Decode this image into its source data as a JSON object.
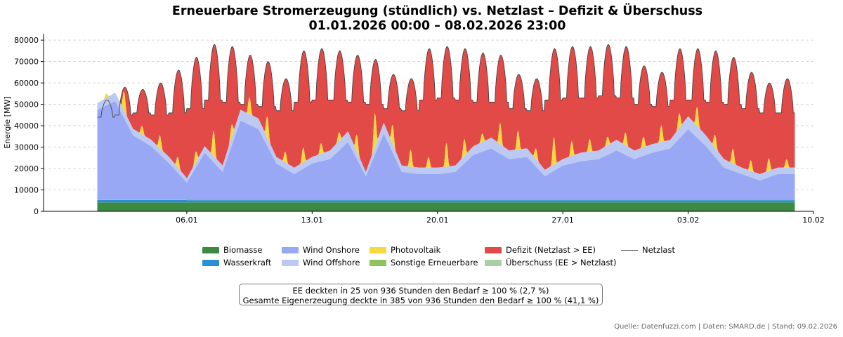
{
  "title_line1": "Erneuerbare Stromerzeugung (stündlich) vs. Netzlast – Defizit & Überschuss",
  "title_line2": "01.01.2026 00:00 – 08.02.2026 23:00",
  "note_line1": "EE deckten in 25 von 936 Stunden den Bedarf ≥ 100 % (2,7 %)",
  "note_line2": "Gesamte Eigenerzeugung deckte in 385 von 936 Stunden den Bedarf ≥ 100 % (41,1 %)",
  "source": "Quelle: Datenfuzzi.com | Daten: SMARD.de | Stand: 09.02.2026",
  "legend": {
    "biomasse": "Biomasse",
    "wasserkraft": "Wasserkraft",
    "wind_onshore": "Wind Onshore",
    "wind_offshore": "Wind Offshore",
    "pv": "Photovoltaik",
    "sonstige": "Sonstige Erneuerbare",
    "defizit": "Defizit (Netzlast > EE)",
    "ueberschuss": "Überschuss (EE > Netzlast)",
    "netzlast": "Netzlast"
  },
  "colors": {
    "biomasse": "#3c8a42",
    "wasserkraft": "#2b8fd8",
    "wind_onshore": "#99a8f5",
    "wind_offshore": "#bcc9f2",
    "pv": "#f6d93e",
    "sonstige": "#8cc35e",
    "defizit": "#e24a48",
    "ueberschuss": "#a9cfa5",
    "netzlast": "#444444"
  },
  "chart_data": {
    "type": "area",
    "ylabel": "Energie [MW]",
    "xlim": [
      "2025-12-29",
      "2026-02-10"
    ],
    "ylim": [
      0,
      83000
    ],
    "yticks": [
      0,
      10000,
      20000,
      30000,
      40000,
      50000,
      60000,
      70000,
      80000
    ],
    "xticks": [
      "06.01",
      "13.01",
      "20.01",
      "27.01",
      "03.02",
      "10.02"
    ],
    "xtick_dates": [
      "2026-01-06",
      "2026-01-13",
      "2026-01-20",
      "2026-01-27",
      "2026-02-03",
      "2026-02-10"
    ],
    "grid": "horizontal dashed",
    "daily": {
      "dates": [
        "01.01",
        "02.01",
        "03.01",
        "04.01",
        "05.01",
        "06.01",
        "07.01",
        "08.01",
        "09.01",
        "10.01",
        "11.01",
        "12.01",
        "13.01",
        "14.01",
        "15.01",
        "16.01",
        "17.01",
        "18.01",
        "19.01",
        "20.01",
        "21.01",
        "22.01",
        "23.01",
        "24.01",
        "25.01",
        "26.01",
        "27.01",
        "28.01",
        "29.01",
        "30.01",
        "31.01",
        "01.02",
        "02.02",
        "03.02",
        "04.02",
        "05.02",
        "06.02",
        "07.02",
        "08.02"
      ],
      "netzlast_peak": [
        52000,
        58000,
        57000,
        60000,
        66000,
        72000,
        78000,
        77000,
        73000,
        70000,
        62000,
        75000,
        76000,
        75000,
        73000,
        71000,
        64000,
        62000,
        76000,
        77000,
        76000,
        74000,
        73000,
        64000,
        62000,
        76000,
        77000,
        77000,
        78000,
        77000,
        68000,
        65000,
        76000,
        76000,
        75000,
        72000,
        65000,
        60000,
        62000
      ],
      "netzlast_trough": [
        44000,
        45000,
        46000,
        45000,
        46000,
        48000,
        52000,
        51000,
        50000,
        49000,
        47000,
        51000,
        52000,
        52000,
        51000,
        50000,
        48000,
        47000,
        52000,
        53000,
        52000,
        51000,
        51000,
        48000,
        47000,
        52000,
        53000,
        53000,
        54000,
        53000,
        50000,
        49000,
        52000,
        52000,
        51000,
        50000,
        48000,
        46000,
        46000
      ],
      "biomasse": [
        4200,
        4200,
        4200,
        4200,
        4200,
        4200,
        4200,
        4200,
        4200,
        4200,
        4200,
        4200,
        4200,
        4200,
        4200,
        4200,
        4200,
        4200,
        4200,
        4200,
        4200,
        4200,
        4200,
        4200,
        4200,
        4200,
        4200,
        4200,
        4200,
        4200,
        4200,
        4200,
        4200,
        4200,
        4200,
        4200,
        4200,
        4200,
        4200
      ],
      "wasserkraft": [
        1100,
        1100,
        1100,
        1100,
        1100,
        1000,
        1000,
        1000,
        1000,
        1000,
        1000,
        1000,
        1000,
        1000,
        1000,
        1000,
        1000,
        1000,
        1000,
        1000,
        1000,
        1000,
        1000,
        1000,
        1000,
        1000,
        1000,
        1000,
        1000,
        1000,
        1000,
        1000,
        1000,
        1000,
        1000,
        1000,
        1000,
        1000,
        1000
      ],
      "sonstige": [
        200,
        200,
        200,
        200,
        200,
        200,
        200,
        200,
        200,
        200,
        200,
        200,
        200,
        200,
        200,
        200,
        200,
        200,
        200,
        200,
        200,
        200,
        200,
        200,
        200,
        200,
        200,
        200,
        200,
        200,
        200,
        200,
        200,
        200,
        200,
        200,
        200,
        200,
        200
      ],
      "wind_onshore": [
        42000,
        46000,
        30000,
        25000,
        17000,
        8000,
        22000,
        13000,
        37000,
        33000,
        17000,
        12000,
        17000,
        19000,
        27000,
        11000,
        31000,
        13000,
        12000,
        12000,
        13000,
        21000,
        24000,
        19000,
        20000,
        11000,
        16000,
        18000,
        19000,
        23000,
        19000,
        22000,
        24000,
        33000,
        25000,
        15000,
        12000,
        9000,
        12000
      ],
      "wind_offshore": [
        3000,
        4000,
        3000,
        3000,
        3000,
        2000,
        3000,
        3000,
        5000,
        5000,
        3000,
        3000,
        3000,
        4000,
        5000,
        2000,
        5000,
        3000,
        3000,
        3000,
        3000,
        4000,
        5000,
        4000,
        4000,
        3000,
        3000,
        4000,
        4000,
        5000,
        4000,
        4000,
        4000,
        6000,
        5000,
        4000,
        3000,
        3000,
        3000
      ],
      "pv_peak": [
        2000,
        9000,
        4000,
        6000,
        5000,
        5000,
        12000,
        6000,
        8000,
        10000,
        5000,
        7000,
        5000,
        4000,
        8000,
        16000,
        9000,
        8000,
        5000,
        11000,
        8000,
        4000,
        10000,
        9000,
        5000,
        13000,
        7000,
        6000,
        4000,
        6000,
        5000,
        8000,
        7000,
        9000,
        6000,
        7000,
        5000,
        6000,
        4000
      ]
    }
  }
}
